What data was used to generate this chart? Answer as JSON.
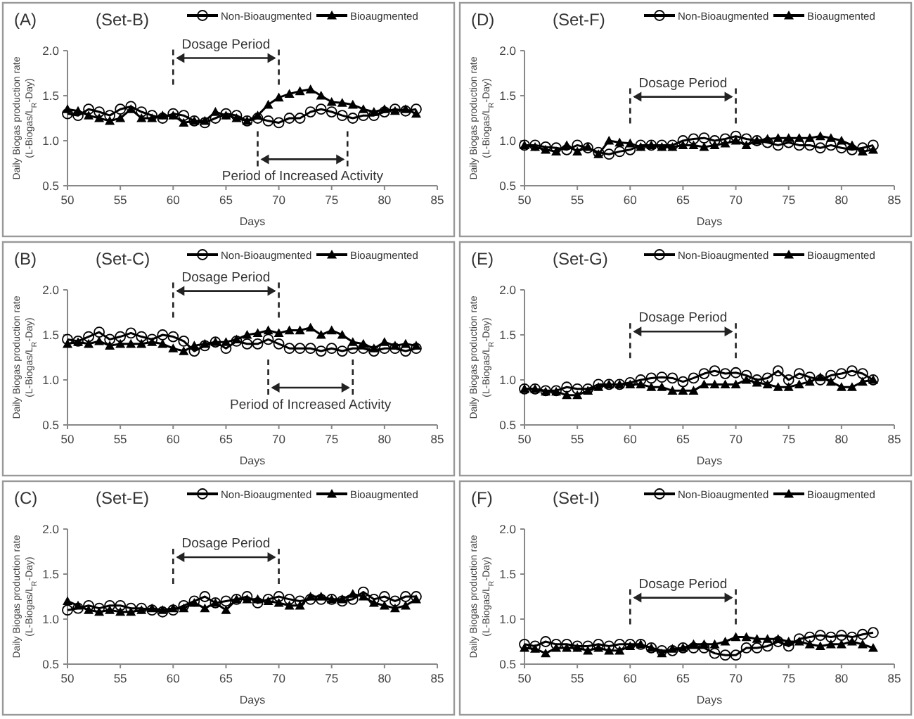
{
  "chart_data": [
    {
      "type": "line",
      "title": "(A)",
      "subtitle": "(Set-B)",
      "xlabel": "Days",
      "ylabel": "Daily Biogas production rate (L-Biogas/L$_{R}$-Day)",
      "xlim": [
        50,
        85
      ],
      "xticks": [
        50,
        55,
        60,
        65,
        70,
        75,
        80,
        85
      ],
      "ylim": [
        0.5,
        2.0
      ],
      "yticks": [
        {
          "value": 0.5,
          "label": "0.5"
        },
        {
          "value": 1,
          "label": "1.0"
        },
        {
          "value": 1.5,
          "label": "1.5"
        },
        {
          "value": 2,
          "label": "2.0"
        }
      ],
      "legend": "top right",
      "x": [
        50,
        51,
        52,
        53,
        54,
        55,
        56,
        57,
        58,
        59,
        60,
        61,
        62,
        63,
        64,
        65,
        66,
        67,
        68,
        69,
        70,
        71,
        72,
        73,
        74,
        75,
        76,
        77,
        78,
        79,
        80,
        81,
        82,
        83
      ],
      "ref_lines": [
        {
          "axis": "x",
          "value": 60,
          "line_style": "dashed"
        },
        {
          "axis": "x",
          "value": 70,
          "line_style": "dashed"
        },
        {
          "axis": "x",
          "value": 68,
          "line_style": "dashed"
        },
        {
          "axis": "x",
          "value": 76.5,
          "line_style": "dashed"
        }
      ],
      "annotations": [
        "Dosage Period",
        "Period of Increased Activity"
      ],
      "series": [
        {
          "name": "Non-Bioaugmented",
          "color": "#000000",
          "marker": "circle",
          "values": [
            1.3,
            1.28,
            1.35,
            1.32,
            1.28,
            1.35,
            1.38,
            1.32,
            1.28,
            1.25,
            1.3,
            1.28,
            1.22,
            1.2,
            1.25,
            1.3,
            1.28,
            1.22,
            1.25,
            1.22,
            1.2,
            1.25,
            1.25,
            1.32,
            1.35,
            1.32,
            1.28,
            1.25,
            1.28,
            1.28,
            1.32,
            1.35,
            1.33,
            1.35
          ]
        },
        {
          "name": "Bioaugmented",
          "color": "#000000",
          "marker": "triangle",
          "values": [
            1.35,
            1.33,
            1.28,
            1.25,
            1.22,
            1.25,
            1.35,
            1.25,
            1.25,
            1.28,
            1.28,
            1.2,
            1.22,
            1.22,
            1.32,
            1.28,
            1.25,
            1.22,
            1.28,
            1.4,
            1.48,
            1.52,
            1.55,
            1.57,
            1.5,
            1.43,
            1.42,
            1.4,
            1.35,
            1.32,
            1.35,
            1.33,
            1.35,
            1.3
          ]
        }
      ]
    },
    {
      "type": "line",
      "title": "(D)",
      "subtitle": "(Set-F)",
      "xlabel": "Days",
      "ylabel": "Daily Biogas production rate (L-Biogas/L$_{R}$-Day)",
      "xlim": [
        50,
        85
      ],
      "xticks": [
        50,
        55,
        60,
        65,
        70,
        75,
        80,
        85
      ],
      "ylim": [
        0.5,
        2.0
      ],
      "yticks": [
        {
          "value": 0.5,
          "label": "0.5"
        },
        {
          "value": 1,
          "label": "1.0"
        },
        {
          "value": 1.5,
          "label": "1.5"
        },
        {
          "value": 2,
          "label": "2.0"
        }
      ],
      "legend": "top right",
      "x": [
        50,
        51,
        52,
        53,
        54,
        55,
        56,
        57,
        58,
        59,
        60,
        61,
        62,
        63,
        64,
        65,
        66,
        67,
        68,
        69,
        70,
        71,
        72,
        73,
        74,
        75,
        76,
        77,
        78,
        79,
        80,
        81,
        82,
        83
      ],
      "ref_lines": [
        {
          "axis": "x",
          "value": 60,
          "line_style": "dashed"
        },
        {
          "axis": "x",
          "value": 70,
          "line_style": "dashed"
        }
      ],
      "annotations": [
        "Dosage Period"
      ],
      "series": [
        {
          "name": "Non-Bioaugmented",
          "color": "#000000",
          "marker": "circle",
          "values": [
            0.95,
            0.95,
            0.93,
            0.92,
            0.9,
            0.95,
            0.92,
            0.87,
            0.85,
            0.88,
            0.9,
            0.95,
            0.95,
            0.95,
            0.95,
            1.0,
            1.02,
            1.03,
            1.0,
            1.02,
            1.05,
            1.02,
            1.0,
            0.98,
            0.95,
            0.98,
            0.95,
            0.95,
            0.92,
            0.95,
            0.92,
            0.9,
            0.92,
            0.95
          ]
        },
        {
          "name": "Bioaugmented",
          "color": "#000000",
          "marker": "triangle",
          "values": [
            0.95,
            0.93,
            0.9,
            0.88,
            0.95,
            0.88,
            0.93,
            0.85,
            1.0,
            0.98,
            0.97,
            0.93,
            0.95,
            0.93,
            0.93,
            0.95,
            0.95,
            0.93,
            0.95,
            0.97,
            1.0,
            0.95,
            1.0,
            1.02,
            1.03,
            1.03,
            1.03,
            1.03,
            1.05,
            1.03,
            1.0,
            0.95,
            0.88,
            0.9
          ]
        }
      ]
    },
    {
      "type": "line",
      "title": "(B)",
      "subtitle": "(Set-C)",
      "xlabel": "Days",
      "ylabel": "Daily Biogas production rate (L-Biogas/L$_{R}$-Day)",
      "xlim": [
        50,
        85
      ],
      "xticks": [
        50,
        55,
        60,
        65,
        70,
        75,
        80,
        85
      ],
      "ylim": [
        0.5,
        2.0
      ],
      "yticks": [
        {
          "value": 0.5,
          "label": "0.5"
        },
        {
          "value": 1,
          "label": "1.0"
        },
        {
          "value": 1.5,
          "label": "1.5"
        },
        {
          "value": 2,
          "label": "2.0"
        }
      ],
      "legend": "top right",
      "x": [
        50,
        51,
        52,
        53,
        54,
        55,
        56,
        57,
        58,
        59,
        60,
        61,
        62,
        63,
        64,
        65,
        66,
        67,
        68,
        69,
        70,
        71,
        72,
        73,
        74,
        75,
        76,
        77,
        78,
        79,
        80,
        81,
        82,
        83
      ],
      "ref_lines": [
        {
          "axis": "x",
          "value": 60,
          "line_style": "dashed"
        },
        {
          "axis": "x",
          "value": 70,
          "line_style": "dashed"
        },
        {
          "axis": "x",
          "value": 69,
          "line_style": "dashed"
        },
        {
          "axis": "x",
          "value": 77,
          "line_style": "dashed"
        }
      ],
      "annotations": [
        "Dosage Period",
        "Period of Increased Activity"
      ],
      "series": [
        {
          "name": "Non-Bioaugmented",
          "color": "#000000",
          "marker": "circle",
          "values": [
            1.45,
            1.43,
            1.48,
            1.53,
            1.45,
            1.48,
            1.52,
            1.48,
            1.45,
            1.5,
            1.48,
            1.43,
            1.32,
            1.38,
            1.42,
            1.35,
            1.43,
            1.4,
            1.4,
            1.45,
            1.4,
            1.35,
            1.35,
            1.35,
            1.32,
            1.35,
            1.32,
            1.35,
            1.35,
            1.32,
            1.35,
            1.35,
            1.32,
            1.35
          ]
        },
        {
          "name": "Bioaugmented",
          "color": "#000000",
          "marker": "triangle",
          "values": [
            1.4,
            1.42,
            1.4,
            1.43,
            1.38,
            1.4,
            1.4,
            1.4,
            1.42,
            1.4,
            1.35,
            1.32,
            1.38,
            1.4,
            1.42,
            1.42,
            1.45,
            1.5,
            1.52,
            1.55,
            1.52,
            1.55,
            1.55,
            1.58,
            1.5,
            1.55,
            1.5,
            1.42,
            1.4,
            1.35,
            1.42,
            1.38,
            1.4,
            1.38
          ]
        }
      ]
    },
    {
      "type": "line",
      "title": "(E)",
      "subtitle": "(Set-G)",
      "xlabel": "Days",
      "ylabel": "Daily Biogas production rate (L-Biogas/L$_{R}$-Day)",
      "xlim": [
        50,
        85
      ],
      "xticks": [
        50,
        55,
        60,
        65,
        70,
        75,
        80,
        85
      ],
      "ylim": [
        0.5,
        2.0
      ],
      "yticks": [
        {
          "value": 0.5,
          "label": "0.5"
        },
        {
          "value": 1,
          "label": "1.0"
        },
        {
          "value": 1.5,
          "label": "1.5"
        },
        {
          "value": 2,
          "label": "2.0"
        }
      ],
      "legend": "top right",
      "x": [
        50,
        51,
        52,
        53,
        54,
        55,
        56,
        57,
        58,
        59,
        60,
        61,
        62,
        63,
        64,
        65,
        66,
        67,
        68,
        69,
        70,
        71,
        72,
        73,
        74,
        75,
        76,
        77,
        78,
        79,
        80,
        81,
        82,
        83
      ],
      "ref_lines": [
        {
          "axis": "x",
          "value": 60,
          "line_style": "dashed"
        },
        {
          "axis": "x",
          "value": 70,
          "line_style": "dashed"
        }
      ],
      "annotations": [
        "Dosage Period"
      ],
      "series": [
        {
          "name": "Non-Bioaugmented",
          "color": "#000000",
          "marker": "circle",
          "values": [
            0.9,
            0.9,
            0.88,
            0.88,
            0.92,
            0.9,
            0.9,
            0.95,
            0.95,
            0.95,
            0.97,
            1.0,
            1.02,
            1.03,
            1.02,
            0.98,
            1.02,
            1.07,
            1.1,
            1.07,
            1.08,
            1.05,
            1.0,
            1.02,
            1.1,
            1.0,
            1.07,
            1.03,
            1.0,
            1.05,
            1.07,
            1.1,
            1.07,
            1.0
          ]
        },
        {
          "name": "Bioaugmented",
          "color": "#000000",
          "marker": "triangle",
          "values": [
            0.9,
            0.9,
            0.87,
            0.87,
            0.83,
            0.83,
            0.88,
            0.92,
            0.95,
            0.95,
            0.95,
            0.95,
            0.92,
            0.92,
            0.88,
            0.88,
            0.88,
            0.95,
            0.95,
            0.95,
            0.95,
            1.0,
            0.97,
            0.95,
            0.92,
            0.92,
            0.95,
            0.98,
            1.03,
            0.98,
            0.92,
            0.92,
            0.98,
            1.0
          ]
        }
      ]
    },
    {
      "type": "line",
      "title": "(C)",
      "subtitle": "(Set-E)",
      "xlabel": "Days",
      "ylabel": "Daily Biogas production rate (L-Biogas/L$_{R}$-Day)",
      "xlim": [
        50,
        85
      ],
      "xticks": [
        50,
        55,
        60,
        65,
        70,
        75,
        80,
        85
      ],
      "ylim": [
        0.5,
        2.0
      ],
      "yticks": [
        {
          "value": 0.5,
          "label": "0.5"
        },
        {
          "value": 1,
          "label": "1.0"
        },
        {
          "value": 1.5,
          "label": "1.5"
        },
        {
          "value": 2,
          "label": "2.0"
        }
      ],
      "legend": "top right",
      "x": [
        50,
        51,
        52,
        53,
        54,
        55,
        56,
        57,
        58,
        59,
        60,
        61,
        62,
        63,
        64,
        65,
        66,
        67,
        68,
        69,
        70,
        71,
        72,
        73,
        74,
        75,
        76,
        77,
        78,
        79,
        80,
        81,
        82,
        83
      ],
      "ref_lines": [
        {
          "axis": "x",
          "value": 60,
          "line_style": "dashed"
        },
        {
          "axis": "x",
          "value": 70,
          "line_style": "dashed"
        }
      ],
      "annotations": [
        "Dosage Period"
      ],
      "series": [
        {
          "name": "Non-Bioaugmented",
          "color": "#000000",
          "marker": "circle",
          "values": [
            1.1,
            1.12,
            1.15,
            1.12,
            1.15,
            1.15,
            1.12,
            1.12,
            1.1,
            1.08,
            1.1,
            1.15,
            1.2,
            1.25,
            1.18,
            1.2,
            1.22,
            1.25,
            1.18,
            1.22,
            1.25,
            1.22,
            1.2,
            1.22,
            1.22,
            1.22,
            1.2,
            1.22,
            1.3,
            1.22,
            1.25,
            1.2,
            1.25,
            1.25
          ]
        },
        {
          "name": "Bioaugmented",
          "color": "#000000",
          "marker": "triangle",
          "values": [
            1.2,
            1.15,
            1.1,
            1.08,
            1.1,
            1.08,
            1.08,
            1.1,
            1.12,
            1.1,
            1.12,
            1.12,
            1.18,
            1.12,
            1.18,
            1.1,
            1.22,
            1.22,
            1.22,
            1.2,
            1.18,
            1.15,
            1.15,
            1.25,
            1.25,
            1.22,
            1.22,
            1.28,
            1.25,
            1.18,
            1.15,
            1.12,
            1.15,
            1.22
          ]
        }
      ]
    },
    {
      "type": "line",
      "title": "(F)",
      "subtitle": "(Set-I)",
      "xlabel": "Days",
      "ylabel": "Daily Biogas production rate (L-Biogas/L$_{R}$-Day)",
      "xlim": [
        50,
        85
      ],
      "xticks": [
        50,
        55,
        60,
        65,
        70,
        75,
        80,
        85
      ],
      "ylim": [
        0.5,
        2.0
      ],
      "yticks": [
        {
          "value": 0.5,
          "label": "0.5"
        },
        {
          "value": 1,
          "label": "1.0"
        },
        {
          "value": 1.5,
          "label": "1.5"
        },
        {
          "value": 2,
          "label": "2.0"
        }
      ],
      "legend": "top right",
      "x": [
        50,
        51,
        52,
        53,
        54,
        55,
        56,
        57,
        58,
        59,
        60,
        61,
        62,
        63,
        64,
        65,
        66,
        67,
        68,
        69,
        70,
        71,
        72,
        73,
        74,
        75,
        76,
        77,
        78,
        79,
        80,
        81,
        82,
        83
      ],
      "ref_lines": [
        {
          "axis": "x",
          "value": 60,
          "line_style": "dashed"
        },
        {
          "axis": "x",
          "value": 70,
          "line_style": "dashed"
        }
      ],
      "annotations": [
        "Dosage Period"
      ],
      "series": [
        {
          "name": "Non-Bioaugmented",
          "color": "#000000",
          "marker": "circle",
          "values": [
            0.72,
            0.7,
            0.75,
            0.72,
            0.72,
            0.7,
            0.7,
            0.72,
            0.7,
            0.72,
            0.72,
            0.72,
            0.68,
            0.65,
            0.65,
            0.68,
            0.68,
            0.68,
            0.62,
            0.6,
            0.6,
            0.68,
            0.68,
            0.7,
            0.75,
            0.7,
            0.78,
            0.8,
            0.82,
            0.8,
            0.82,
            0.8,
            0.83,
            0.85
          ]
        },
        {
          "name": "Bioaugmented",
          "color": "#000000",
          "marker": "triangle",
          "values": [
            0.68,
            0.67,
            0.62,
            0.68,
            0.68,
            0.68,
            0.65,
            0.68,
            0.65,
            0.65,
            0.7,
            0.72,
            0.68,
            0.62,
            0.67,
            0.68,
            0.72,
            0.72,
            0.72,
            0.75,
            0.8,
            0.8,
            0.78,
            0.78,
            0.78,
            0.75,
            0.75,
            0.72,
            0.7,
            0.72,
            0.72,
            0.75,
            0.72,
            0.68
          ]
        }
      ]
    }
  ]
}
